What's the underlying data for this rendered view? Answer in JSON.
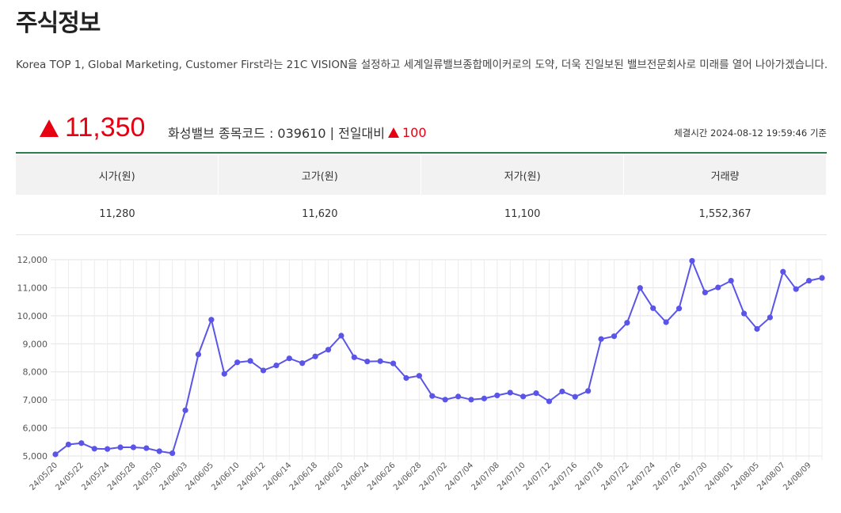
{
  "page": {
    "title": "주식정보",
    "intro": "Korea TOP 1, Global Marketing, Customer First라는 21C VISION을 설정하고 세계일류밸브종합메이커로의 도약, 더욱 진일보된 밸브전문회사로 미래를 열어 나아가겠습니다."
  },
  "quote": {
    "price": "11,350",
    "company": "화성밸브",
    "code_label": "종목코드 : 039610",
    "separator": "|",
    "change_label": "전일대비",
    "change": "100",
    "timestamp": "체결시간 2024-08-12 19:59:46 기준",
    "up_color": "#e60012"
  },
  "stats": {
    "headers": [
      "시가(원)",
      "고가(원)",
      "저가(원)",
      "거래량"
    ],
    "values": [
      "11,280",
      "11,620",
      "11,100",
      "1,552,367"
    ]
  },
  "chart_data": {
    "type": "line",
    "color": "#5a55e8",
    "grid": true,
    "ylim": [
      5000,
      12000
    ],
    "yticks": [
      "5,000",
      "6,000",
      "7,000",
      "8,000",
      "9,000",
      "10,000",
      "11,000",
      "12,000"
    ],
    "x_labels": [
      "24/05/20",
      "24/05/22",
      "24/05/24",
      "24/05/28",
      "24/05/30",
      "24/06/03",
      "24/06/05",
      "24/06/10",
      "24/06/12",
      "24/06/14",
      "24/06/18",
      "24/06/20",
      "24/06/24",
      "24/06/26",
      "24/06/28",
      "24/07/02",
      "24/07/04",
      "24/07/08",
      "24/07/10",
      "24/07/12",
      "24/07/16",
      "24/07/18",
      "24/07/22",
      "24/07/24",
      "24/07/26",
      "24/07/30",
      "24/08/01",
      "24/08/05",
      "24/08/07",
      "24/08/09"
    ],
    "values": [
      5060,
      5410,
      5460,
      5260,
      5250,
      5310,
      5310,
      5280,
      5170,
      5100,
      6630,
      8620,
      9860,
      7930,
      8340,
      8390,
      8050,
      8230,
      8480,
      8310,
      8550,
      8790,
      9290,
      8520,
      8370,
      8380,
      8300,
      7780,
      7860,
      7140,
      7010,
      7120,
      7010,
      7050,
      7160,
      7260,
      7120,
      7240,
      6950,
      7300,
      7110,
      7320,
      9170,
      9270,
      9750,
      10990,
      10270,
      9770,
      10260,
      11960,
      10830,
      11010,
      11250,
      10080,
      9530,
      9940,
      11570,
      10950,
      11250,
      11350
    ]
  }
}
